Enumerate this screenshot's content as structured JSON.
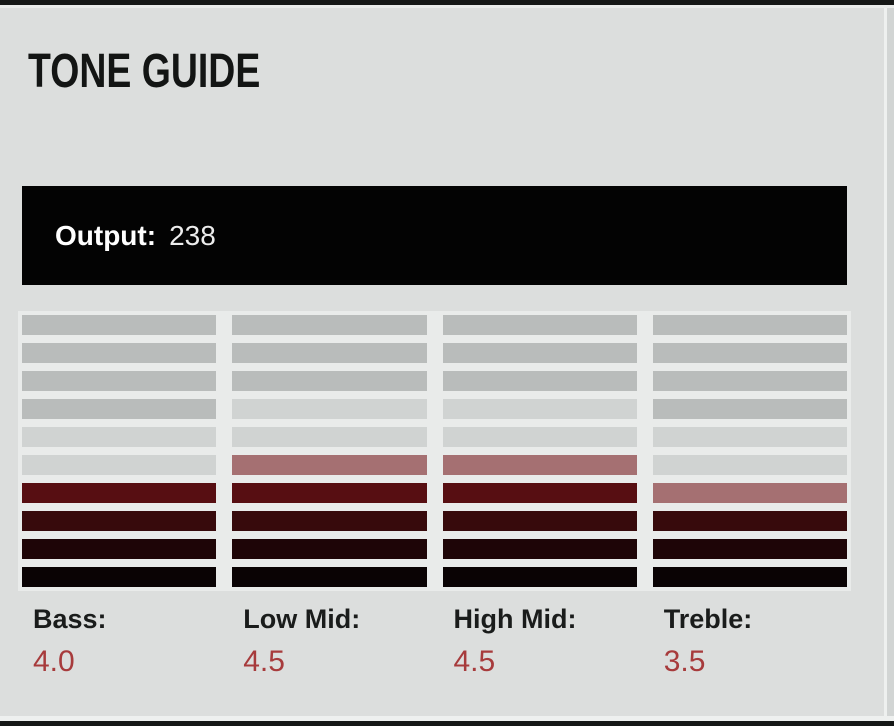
{
  "panel": {
    "title": "TONE GUIDE",
    "background_color": "#dcdedd",
    "meter_background_color": "#e9ebea"
  },
  "output": {
    "label": "Output:",
    "value": "238",
    "bar_color": "#030303",
    "text_color": "#ffffff"
  },
  "tone_meter": {
    "segments_per_channel": 10,
    "segment_colors": {
      "dim": "#b9bcbb",
      "faint": "#d0d3d2",
      "half": "#a57072",
      "on4": "#570e12",
      "on3": "#370a0c",
      "on2": "#1e0507",
      "on1": "#0a0304"
    },
    "value_color": "#a73b3c",
    "channels": [
      {
        "id": "bass",
        "label": "Bass:",
        "value": "4.0",
        "segments": [
          "dim",
          "dim",
          "dim",
          "dim",
          "faint",
          "faint",
          "on4",
          "on3",
          "on2",
          "on1"
        ]
      },
      {
        "id": "low-mid",
        "label": "Low Mid:",
        "value": "4.5",
        "segments": [
          "dim",
          "dim",
          "dim",
          "faint",
          "faint",
          "half",
          "on4",
          "on3",
          "on2",
          "on1"
        ]
      },
      {
        "id": "high-mid",
        "label": "High Mid:",
        "value": "4.5",
        "segments": [
          "dim",
          "dim",
          "dim",
          "faint",
          "faint",
          "half",
          "on4",
          "on3",
          "on2",
          "on1"
        ]
      },
      {
        "id": "treble",
        "label": "Treble:",
        "value": "3.5",
        "segments": [
          "dim",
          "dim",
          "dim",
          "dim",
          "faint",
          "faint",
          "half",
          "on3",
          "on2",
          "on1"
        ]
      }
    ]
  },
  "chart_data": {
    "type": "bar",
    "title": "TONE GUIDE",
    "categories": [
      "Bass",
      "Low Mid",
      "High Mid",
      "Treble"
    ],
    "values": [
      4.0,
      4.5,
      4.5,
      3.5
    ],
    "ylim": [
      0,
      10
    ],
    "annotations": [
      "Output: 238"
    ],
    "legend_position": "none",
    "grid": false
  }
}
